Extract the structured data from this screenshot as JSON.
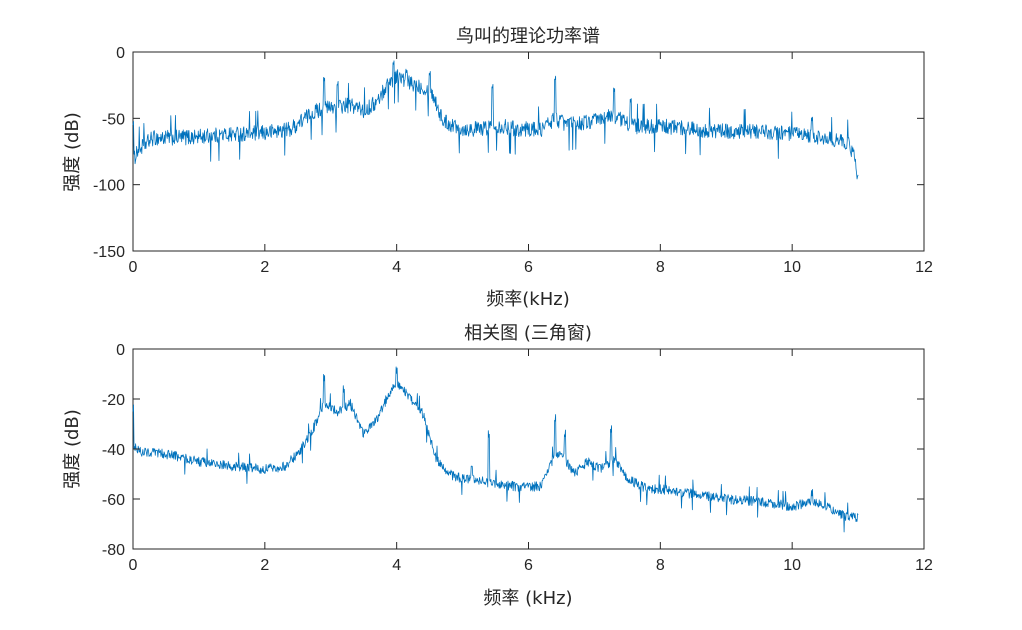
{
  "chart_data": [
    {
      "type": "line",
      "title": "鸟叫的理论功率谱",
      "xlabel": "频率(kHz)",
      "ylabel": "强度 (dB)",
      "xlim": [
        0,
        12
      ],
      "ylim": [
        -150,
        0
      ],
      "xticks": [
        0,
        2,
        4,
        6,
        8,
        10,
        12
      ],
      "yticks": [
        -150,
        -100,
        -50,
        0
      ],
      "grid": false,
      "color": "#0072bd",
      "x_max_data": 11.0,
      "baseline_profile": [
        [
          0.0,
          -85
        ],
        [
          0.05,
          -75
        ],
        [
          0.3,
          -65
        ],
        [
          1.0,
          -64
        ],
        [
          1.5,
          -62
        ],
        [
          2.0,
          -61
        ],
        [
          2.4,
          -58
        ],
        [
          2.6,
          -50
        ],
        [
          2.8,
          -44
        ],
        [
          3.0,
          -42
        ],
        [
          3.3,
          -40
        ],
        [
          3.5,
          -44
        ],
        [
          3.7,
          -38
        ],
        [
          3.85,
          -25
        ],
        [
          4.0,
          -18
        ],
        [
          4.2,
          -24
        ],
        [
          4.4,
          -26
        ],
        [
          4.55,
          -32
        ],
        [
          4.7,
          -52
        ],
        [
          5.0,
          -58
        ],
        [
          5.3,
          -58
        ],
        [
          5.5,
          -55
        ],
        [
          5.8,
          -58
        ],
        [
          6.2,
          -58
        ],
        [
          6.4,
          -50
        ],
        [
          6.6,
          -55
        ],
        [
          7.0,
          -52
        ],
        [
          7.3,
          -48
        ],
        [
          7.6,
          -56
        ],
        [
          8.0,
          -56
        ],
        [
          8.5,
          -58
        ],
        [
          9.0,
          -60
        ],
        [
          9.5,
          -60
        ],
        [
          10.0,
          -62
        ],
        [
          10.3,
          -64
        ],
        [
          10.6,
          -66
        ],
        [
          10.85,
          -68
        ],
        [
          10.95,
          -80
        ],
        [
          11.0,
          -98
        ]
      ],
      "peaks": [
        [
          0.0,
          -55
        ],
        [
          2.9,
          -22
        ],
        [
          3.1,
          -26
        ],
        [
          3.95,
          -10
        ],
        [
          4.15,
          -16
        ],
        [
          4.5,
          -18
        ],
        [
          5.45,
          -28
        ],
        [
          6.4,
          -22
        ],
        [
          7.3,
          -30
        ],
        [
          7.55,
          -38
        ],
        [
          10.3,
          -52
        ]
      ],
      "noise_amplitude": 12,
      "sample_count": 1400
    },
    {
      "type": "line",
      "title": "相关图 (三角窗)",
      "xlabel": "频率 (kHz)",
      "ylabel": "强度 (dB)",
      "xlim": [
        0,
        12
      ],
      "ylim": [
        -80,
        0
      ],
      "xticks": [
        0,
        2,
        4,
        6,
        8,
        10,
        12
      ],
      "yticks": [
        -80,
        -60,
        -40,
        -20,
        0
      ],
      "grid": false,
      "color": "#0072bd",
      "x_max_data": 11.0,
      "baseline_profile": [
        [
          0.0,
          -38
        ],
        [
          0.1,
          -41
        ],
        [
          0.5,
          -42
        ],
        [
          1.0,
          -45
        ],
        [
          1.5,
          -47
        ],
        [
          2.0,
          -48
        ],
        [
          2.3,
          -47
        ],
        [
          2.5,
          -42
        ],
        [
          2.7,
          -34
        ],
        [
          2.9,
          -22
        ],
        [
          3.1,
          -25
        ],
        [
          3.3,
          -22
        ],
        [
          3.5,
          -34
        ],
        [
          3.7,
          -28
        ],
        [
          3.9,
          -17
        ],
        [
          4.0,
          -13
        ],
        [
          4.2,
          -20
        ],
        [
          4.4,
          -26
        ],
        [
          4.6,
          -44
        ],
        [
          4.8,
          -50
        ],
        [
          5.0,
          -52
        ],
        [
          5.3,
          -53
        ],
        [
          5.5,
          -54
        ],
        [
          5.8,
          -55
        ],
        [
          6.2,
          -55
        ],
        [
          6.35,
          -45
        ],
        [
          6.5,
          -42
        ],
        [
          6.7,
          -50
        ],
        [
          6.9,
          -45
        ],
        [
          7.1,
          -48
        ],
        [
          7.3,
          -44
        ],
        [
          7.5,
          -52
        ],
        [
          7.8,
          -56
        ],
        [
          8.0,
          -56
        ],
        [
          8.5,
          -58
        ],
        [
          9.0,
          -60
        ],
        [
          9.5,
          -61
        ],
        [
          10.0,
          -63
        ],
        [
          10.3,
          -61
        ],
        [
          10.6,
          -64
        ],
        [
          10.8,
          -67
        ],
        [
          11.0,
          -67.5
        ]
      ],
      "peaks": [
        [
          0.0,
          -25
        ],
        [
          2.9,
          -13
        ],
        [
          3.2,
          -18
        ],
        [
          4.0,
          -10
        ],
        [
          5.4,
          -36
        ],
        [
          6.4,
          -30
        ],
        [
          6.55,
          -36
        ],
        [
          7.25,
          -34
        ],
        [
          10.3,
          -59
        ]
      ],
      "noise_amplitude": 4,
      "sample_count": 1400
    }
  ]
}
